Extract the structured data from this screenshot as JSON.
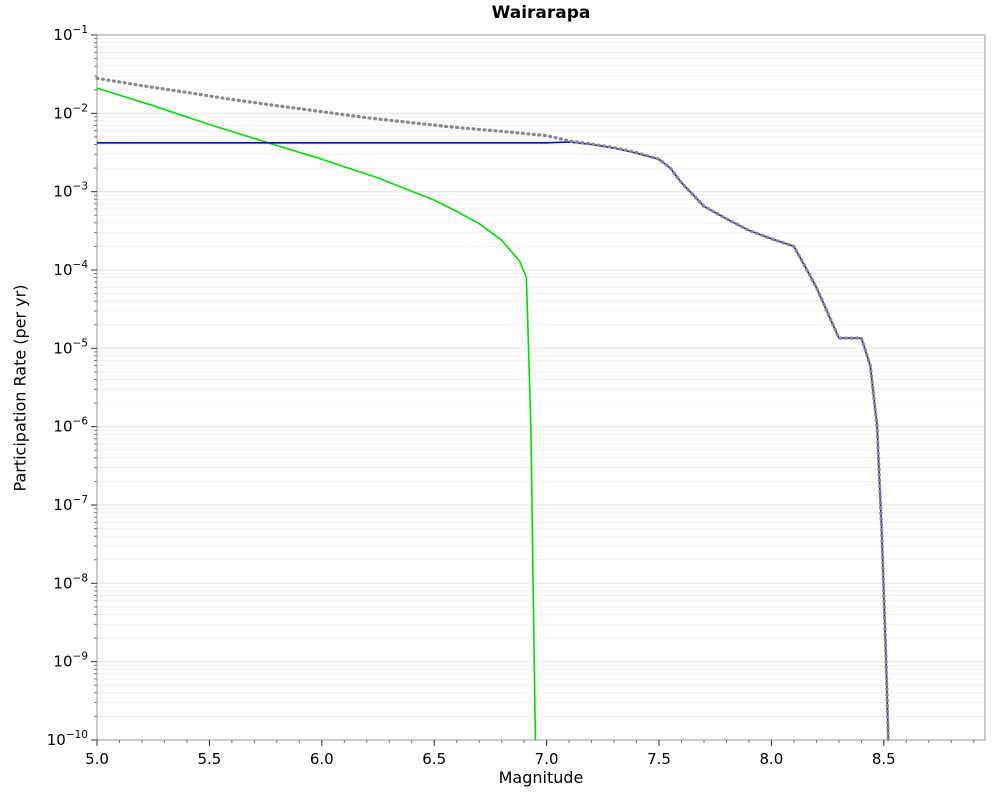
{
  "chart_data": {
    "type": "line",
    "title": "Wairarapa",
    "xlabel": "Magnitude",
    "ylabel": "Participation Rate (per yr)",
    "xlim": [
      5.0,
      8.95
    ],
    "yscale": "log",
    "ylim_exp": [
      -10,
      -1
    ],
    "grid": "horizontal-log-minor",
    "legend": "none",
    "x_ticks": [
      5.0,
      5.5,
      6.0,
      6.5,
      7.0,
      7.5,
      8.0,
      8.5
    ],
    "x_tick_labels": [
      "5.0",
      "5.5",
      "6.0",
      "6.5",
      "7.0",
      "7.5",
      "8.0",
      "8.5"
    ],
    "y_tick_exponents": [
      -1,
      -2,
      -3,
      -4,
      -5,
      -6,
      -7,
      -8,
      -9,
      -10
    ],
    "series": [
      {
        "name": "green-curve",
        "color": "#00dd00",
        "style": "solid",
        "width": 1.6,
        "x": [
          5.0,
          5.25,
          5.5,
          5.75,
          6.0,
          6.25,
          6.5,
          6.6,
          6.7,
          6.8,
          6.88,
          6.91,
          6.93,
          6.94,
          6.95
        ],
        "y": [
          0.021,
          0.0125,
          0.0072,
          0.0043,
          0.0026,
          0.0015,
          0.00078,
          0.00056,
          0.00039,
          0.00024,
          0.00013,
          8e-05,
          1e-06,
          1e-08,
          1e-10
        ]
      },
      {
        "name": "blue-curve",
        "color": "#0000cc",
        "style": "solid",
        "width": 1.6,
        "x": [
          5.0,
          7.0,
          7.1,
          7.2,
          7.3,
          7.4,
          7.5,
          7.55,
          7.6,
          7.7,
          7.8,
          7.9,
          8.0,
          8.1,
          8.15,
          8.2,
          8.3,
          8.4,
          8.44,
          8.47,
          8.49,
          8.51,
          8.52
        ],
        "y": [
          0.0042,
          0.0042,
          0.0043,
          0.004,
          0.0036,
          0.0031,
          0.0026,
          0.002,
          0.0013,
          0.00065,
          0.00045,
          0.00032,
          0.00025,
          0.0002,
          0.00011,
          6e-05,
          1.35e-05,
          1.35e-05,
          6e-06,
          1e-06,
          5e-08,
          1e-09,
          1e-10
        ]
      },
      {
        "name": "gray-dotted-curve",
        "color": "#888888",
        "style": "dotted",
        "width": 3.2,
        "x": [
          5.0,
          5.2,
          5.4,
          5.6,
          5.8,
          6.0,
          6.2,
          6.4,
          6.6,
          6.8,
          7.0,
          7.1,
          7.2,
          7.3,
          7.4,
          7.5,
          7.55,
          7.6,
          7.7,
          7.8,
          7.9,
          8.0,
          8.1,
          8.15,
          8.2,
          8.3,
          8.4,
          8.44,
          8.47,
          8.49,
          8.51,
          8.52
        ],
        "y": [
          0.028,
          0.0225,
          0.0185,
          0.015,
          0.0125,
          0.0105,
          0.0088,
          0.0076,
          0.0066,
          0.0059,
          0.0052,
          0.00445,
          0.00405,
          0.00365,
          0.00315,
          0.0026,
          0.002,
          0.0013,
          0.00065,
          0.00045,
          0.00032,
          0.00025,
          0.0002,
          0.00011,
          6e-05,
          1.35e-05,
          1.35e-05,
          6e-06,
          1e-06,
          5e-08,
          1e-09,
          1e-10
        ]
      }
    ]
  }
}
